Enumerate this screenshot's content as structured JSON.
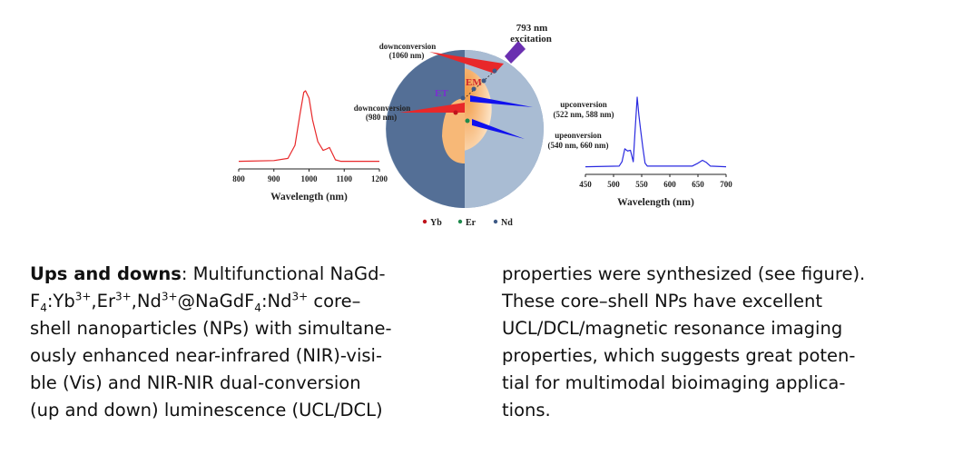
{
  "figure": {
    "excitation": [
      "793 nm",
      "excitation"
    ],
    "down1060": [
      "downconversion",
      "(1060 nm)"
    ],
    "down980": [
      "downconversion",
      "(980 nm)"
    ],
    "up1": [
      "upconversion",
      "(522 nm, 588 nm)"
    ],
    "up2": [
      "upeonversion",
      "(540 nm, 660 nm)"
    ],
    "em_label": "EM",
    "et_label": "ET",
    "legend": [
      {
        "label": "Yb",
        "color": "#c0141c"
      },
      {
        "label": "Er",
        "color": "#1f8a4c"
      },
      {
        "label": "Nd",
        "color": "#3e5a86"
      }
    ],
    "colors": {
      "shell": "#7f97b6",
      "shell_dark": "#546f96",
      "shell_cut": "#a9bcd3",
      "core": "#f6b36b",
      "red": "#e8282a",
      "blue": "#1010ee",
      "purple": "#6a2fb0"
    }
  },
  "chart_data": [
    {
      "type": "line",
      "title": "",
      "xlabel": "Wavelength (nm)",
      "ylabel": "",
      "xlim": [
        800,
        1200
      ],
      "xticks": [
        "800",
        "900",
        "1000",
        "1100",
        "1200"
      ],
      "color": "#e8282a",
      "x": [
        800,
        900,
        940,
        960,
        975,
        985,
        990,
        1000,
        1010,
        1025,
        1040,
        1050,
        1058,
        1065,
        1075,
        1090,
        1200
      ],
      "y": [
        0.03,
        0.04,
        0.07,
        0.25,
        0.7,
        0.98,
        1.0,
        0.9,
        0.6,
        0.3,
        0.18,
        0.2,
        0.22,
        0.15,
        0.05,
        0.03,
        0.03
      ]
    },
    {
      "type": "line",
      "title": "",
      "xlabel": "Wavelength (nm)",
      "ylabel": "",
      "xlim": [
        450,
        700
      ],
      "xticks": [
        "450",
        "500",
        "550",
        "600",
        "650",
        "700"
      ],
      "color": "#2a2ae0",
      "x": [
        450,
        510,
        515,
        520,
        525,
        530,
        535,
        538,
        542,
        545,
        548,
        552,
        556,
        560,
        600,
        640,
        650,
        658,
        665,
        672,
        700
      ],
      "y": [
        0.03,
        0.04,
        0.1,
        0.28,
        0.25,
        0.26,
        0.1,
        0.5,
        1.0,
        0.75,
        0.55,
        0.3,
        0.08,
        0.04,
        0.04,
        0.04,
        0.08,
        0.12,
        0.09,
        0.04,
        0.03
      ]
    }
  ],
  "caption": {
    "left_lines": [
      [
        {
          "t": "Ups and downs",
          "b": 1
        },
        {
          "t": ": Multifunctional NaGd-"
        }
      ],
      [
        {
          "t": "F"
        },
        {
          "t": "4",
          "sub": 1
        },
        {
          "t": ":Yb"
        },
        {
          "t": "3+",
          "sup": 1
        },
        {
          "t": ",Er"
        },
        {
          "t": "3+",
          "sup": 1
        },
        {
          "t": ",Nd"
        },
        {
          "t": "3+",
          "sup": 1
        },
        {
          "t": "@NaGdF"
        },
        {
          "t": "4",
          "sub": 1
        },
        {
          "t": ":Nd"
        },
        {
          "t": "3+",
          "sup": 1
        },
        {
          "t": " core–"
        }
      ],
      [
        {
          "t": "shell nanoparticles (NPs) with simultane-"
        }
      ],
      [
        {
          "t": "ously enhanced near-infrared (NIR)-visi-"
        }
      ],
      [
        {
          "t": "ble (Vis) and NIR-NIR dual-conversion"
        }
      ],
      [
        {
          "t": "(up and down) luminescence (UCL/DCL)"
        }
      ]
    ],
    "right_lines": [
      [
        {
          "t": "properties were synthesized (see figure)."
        }
      ],
      [
        {
          "t": "These core–shell NPs have excellent"
        }
      ],
      [
        {
          "t": "UCL/DCL/magnetic resonance imaging"
        }
      ],
      [
        {
          "t": "properties, which suggests great poten-"
        }
      ],
      [
        {
          "t": "tial for multimodal bioimaging applica-"
        }
      ],
      [
        {
          "t": "tions."
        }
      ]
    ]
  }
}
